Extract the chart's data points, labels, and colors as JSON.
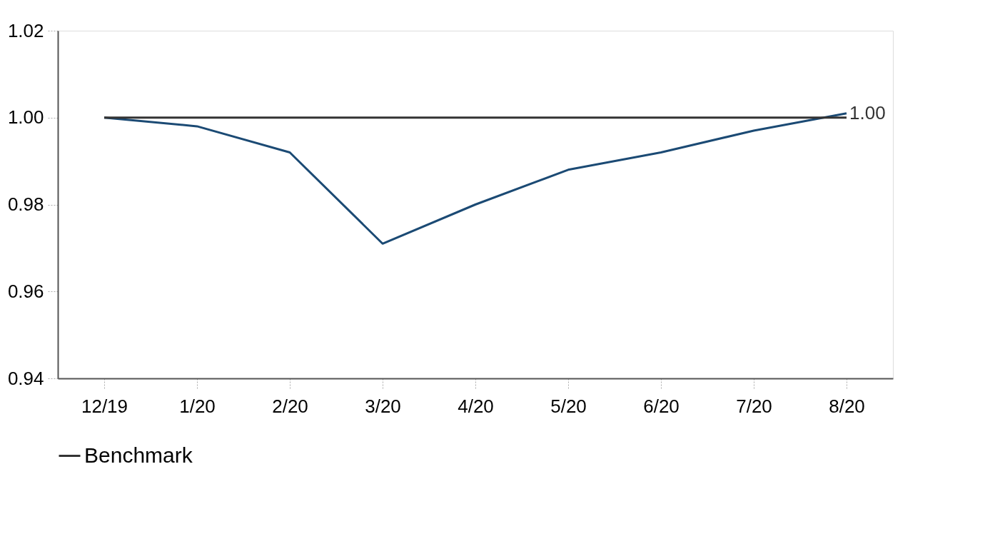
{
  "chart_data": {
    "type": "line",
    "categories": [
      "12/19",
      "1/20",
      "2/20",
      "3/20",
      "4/20",
      "5/20",
      "6/20",
      "7/20",
      "8/20"
    ],
    "series": [
      {
        "color": "#1b4a74",
        "values": [
          1.0,
          0.998,
          0.992,
          0.971,
          0.98,
          0.988,
          0.992,
          0.997,
          1.001
        ],
        "value_labels": [
          null,
          null,
          null,
          null,
          null,
          null,
          null,
          null,
          "1.00"
        ]
      },
      {
        "name": "Benchmark",
        "color": "#333333",
        "values": [
          1.0,
          1.0,
          1.0,
          1.0,
          1.0,
          1.0,
          1.0,
          1.0,
          1.0
        ]
      }
    ],
    "ylim": [
      0.94,
      1.02
    ],
    "yticks": [
      0.94,
      0.96,
      0.98,
      {
        "value": 1.0,
        "label": "1.00"
      },
      1.02
    ],
    "grid": false,
    "legend": "bottom",
    "marker": "none",
    "line_style": "solid"
  }
}
